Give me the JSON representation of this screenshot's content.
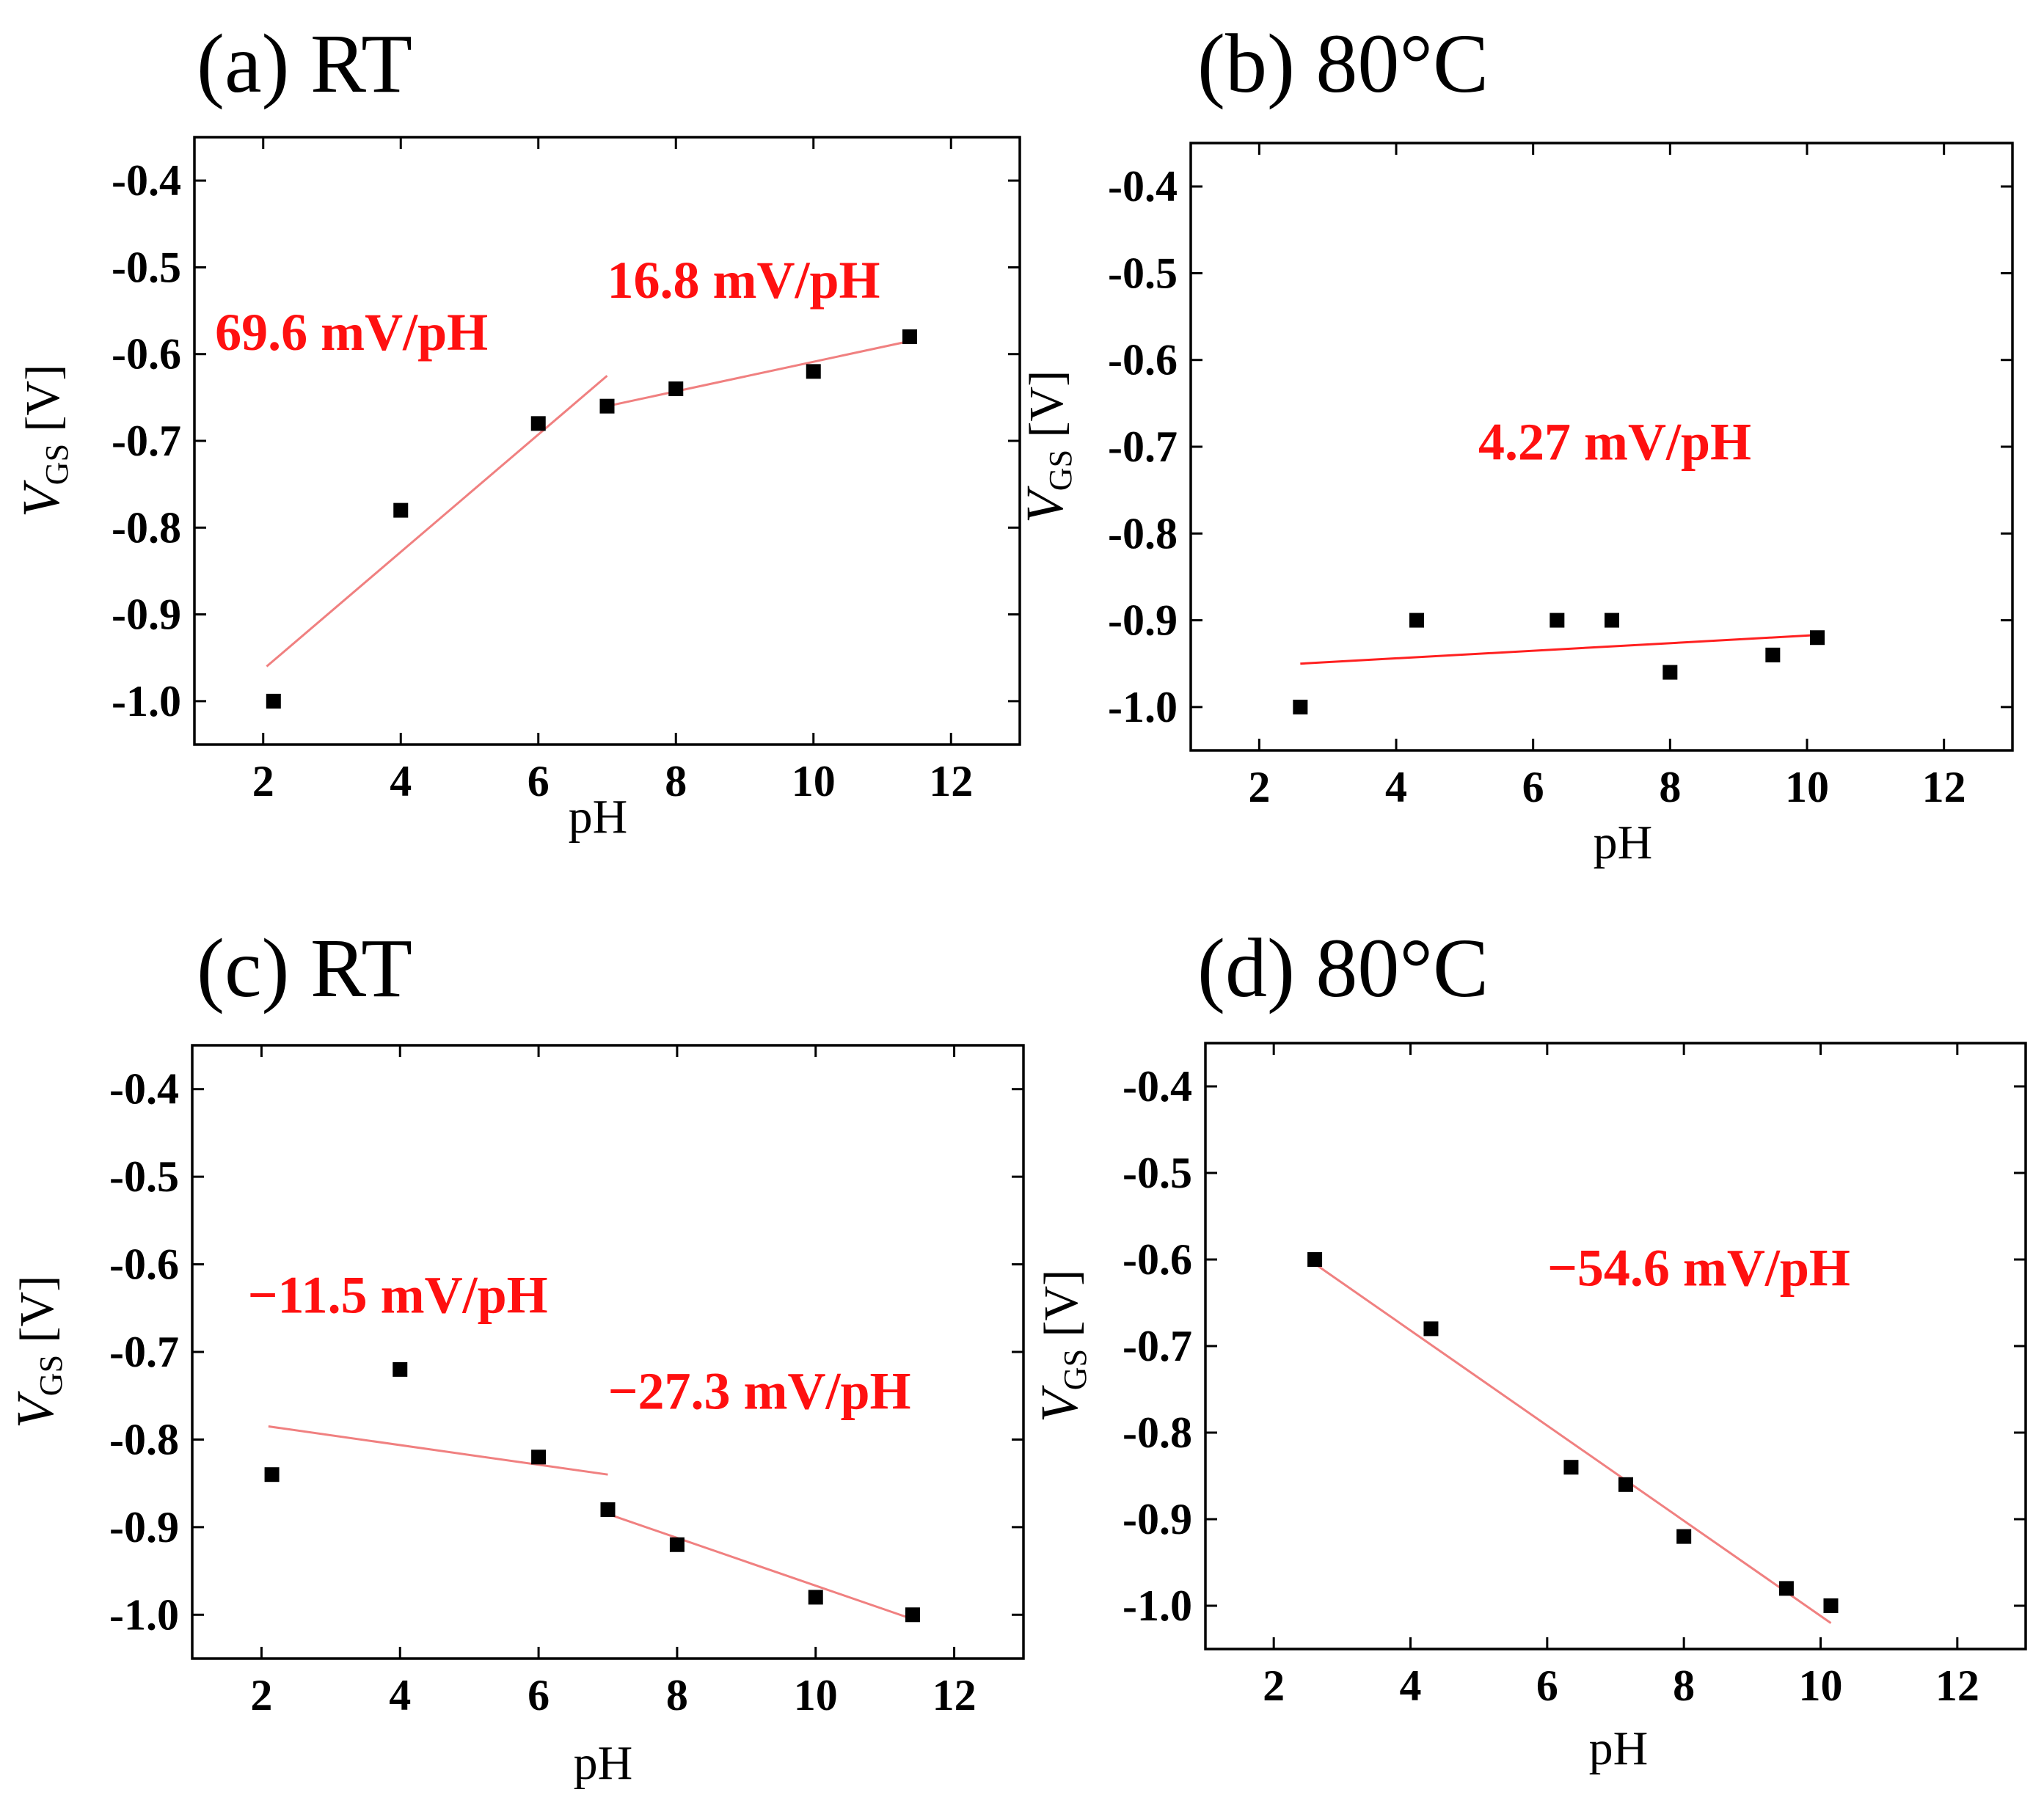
{
  "chart_data": [
    {
      "id": "a",
      "type": "scatter",
      "title": "(a) RT",
      "xlabel": "pH",
      "ylabel": {
        "main": "V",
        "sub": "GS",
        "unit": " [V]"
      },
      "xlim": [
        1,
        13
      ],
      "ylim": [
        -1.05,
        -0.35
      ],
      "x_ticks": [
        2,
        4,
        6,
        8,
        10,
        12
      ],
      "y_ticks": [
        -1.0,
        -0.9,
        -0.8,
        -0.7,
        -0.6,
        -0.5,
        -0.4
      ],
      "x_tick_labels": [
        "2",
        "4",
        "6",
        "8",
        "10",
        "12"
      ],
      "y_tick_labels": [
        "-1.0",
        "-0.9",
        "-0.8",
        "-0.7",
        "-0.6",
        "-0.5",
        "-0.4"
      ],
      "points": {
        "x": [
          2.15,
          4.0,
          6.0,
          7.0,
          8.0,
          10.0,
          11.4
        ],
        "y": [
          -1.0,
          -0.78,
          -0.68,
          -0.66,
          -0.64,
          -0.62,
          -0.58
        ]
      },
      "fits": [
        {
          "x": [
            2.05,
            7.0
          ],
          "y": [
            -0.96,
            -0.625
          ],
          "color": "#f08080"
        },
        {
          "x": [
            7.0,
            11.4
          ],
          "y": [
            -0.66,
            -0.585
          ],
          "color": "#f08080"
        }
      ],
      "annotations": [
        {
          "text": "69.6 mV/pH",
          "x": 1.3,
          "y": -0.595
        },
        {
          "text": "16.8 mV/pH",
          "x": 7.0,
          "y": -0.535
        }
      ]
    },
    {
      "id": "b",
      "type": "scatter",
      "title": "(b) 80°C",
      "xlabel": "pH",
      "ylabel": {
        "main": "V",
        "sub": "GS",
        "unit": " [V]"
      },
      "xlim": [
        1,
        13
      ],
      "ylim": [
        -1.05,
        -0.35
      ],
      "x_ticks": [
        2,
        4,
        6,
        8,
        10,
        12
      ],
      "y_ticks": [
        -1.0,
        -0.9,
        -0.8,
        -0.7,
        -0.6,
        -0.5,
        -0.4
      ],
      "x_tick_labels": [
        "2",
        "4",
        "6",
        "8",
        "10",
        "12"
      ],
      "y_tick_labels": [
        "-1.0",
        "-0.9",
        "-0.8",
        "-0.7",
        "-0.6",
        "-0.5",
        "-0.4"
      ],
      "points": {
        "x": [
          2.6,
          4.3,
          6.35,
          7.15,
          8.0,
          9.5,
          10.15
        ],
        "y": [
          -1.0,
          -0.9,
          -0.9,
          -0.9,
          -0.96,
          -0.94,
          -0.92
        ]
      },
      "fits": [
        {
          "x": [
            2.6,
            10.15
          ],
          "y": [
            -0.95,
            -0.917
          ],
          "color": "#ff2020"
        }
      ],
      "annotations": [
        {
          "text": "4.27 mV/pH",
          "x": 5.2,
          "y": -0.715
        }
      ]
    },
    {
      "id": "c",
      "type": "scatter",
      "title": "(c) RT",
      "xlabel": "pH",
      "ylabel": {
        "main": "V",
        "sub": "GS",
        "unit": " [V]"
      },
      "xlim": [
        1,
        13
      ],
      "ylim": [
        -1.05,
        -0.35
      ],
      "x_ticks": [
        2,
        4,
        6,
        8,
        10,
        12
      ],
      "y_ticks": [
        -1.0,
        -0.9,
        -0.8,
        -0.7,
        -0.6,
        -0.5,
        -0.4
      ],
      "x_tick_labels": [
        "2",
        "4",
        "6",
        "8",
        "10",
        "12"
      ],
      "y_tick_labels": [
        "-1.0",
        "-0.9",
        "-0.8",
        "-0.7",
        "-0.6",
        "-0.5",
        "-0.4"
      ],
      "points": {
        "x": [
          2.15,
          4.0,
          6.0,
          7.0,
          8.0,
          10.0,
          11.4
        ],
        "y": [
          -0.84,
          -0.72,
          -0.82,
          -0.88,
          -0.92,
          -0.98,
          -1.0
        ]
      },
      "fits": [
        {
          "x": [
            2.1,
            7.0
          ],
          "y": [
            -0.785,
            -0.84
          ],
          "color": "#f08080"
        },
        {
          "x": [
            7.0,
            11.4
          ],
          "y": [
            -0.885,
            -1.005
          ],
          "color": "#f08080"
        }
      ],
      "annotations": [
        {
          "text": "−11.5 mV/pH",
          "x": 1.8,
          "y": -0.655
        },
        {
          "text": "−27.3 mV/pH",
          "x": 7.0,
          "y": -0.765
        }
      ]
    },
    {
      "id": "d",
      "type": "scatter",
      "title": "(d) 80°C",
      "xlabel": "pH",
      "ylabel": {
        "main": "V",
        "sub": "GS",
        "unit": " [V]"
      },
      "xlim": [
        1,
        13
      ],
      "ylim": [
        -1.05,
        -0.35
      ],
      "x_ticks": [
        2,
        4,
        6,
        8,
        10,
        12
      ],
      "y_ticks": [
        -1.0,
        -0.9,
        -0.8,
        -0.7,
        -0.6,
        -0.5,
        -0.4
      ],
      "x_tick_labels": [
        "2",
        "4",
        "6",
        "8",
        "10",
        "12"
      ],
      "y_tick_labels": [
        "-1.0",
        "-0.9",
        "-0.8",
        "-0.7",
        "-0.6",
        "-0.5",
        "-0.4"
      ],
      "points": {
        "x": [
          2.6,
          4.3,
          6.35,
          7.15,
          8.0,
          9.5,
          10.15
        ],
        "y": [
          -0.6,
          -0.68,
          -0.84,
          -0.86,
          -0.92,
          -0.98,
          -1.0
        ]
      },
      "fits": [
        {
          "x": [
            2.6,
            10.15
          ],
          "y": [
            -0.605,
            -1.02
          ],
          "color": "#f08080"
        }
      ],
      "annotations": [
        {
          "text": "−54.6 mV/pH",
          "x": 6.0,
          "y": -0.63
        }
      ]
    }
  ]
}
